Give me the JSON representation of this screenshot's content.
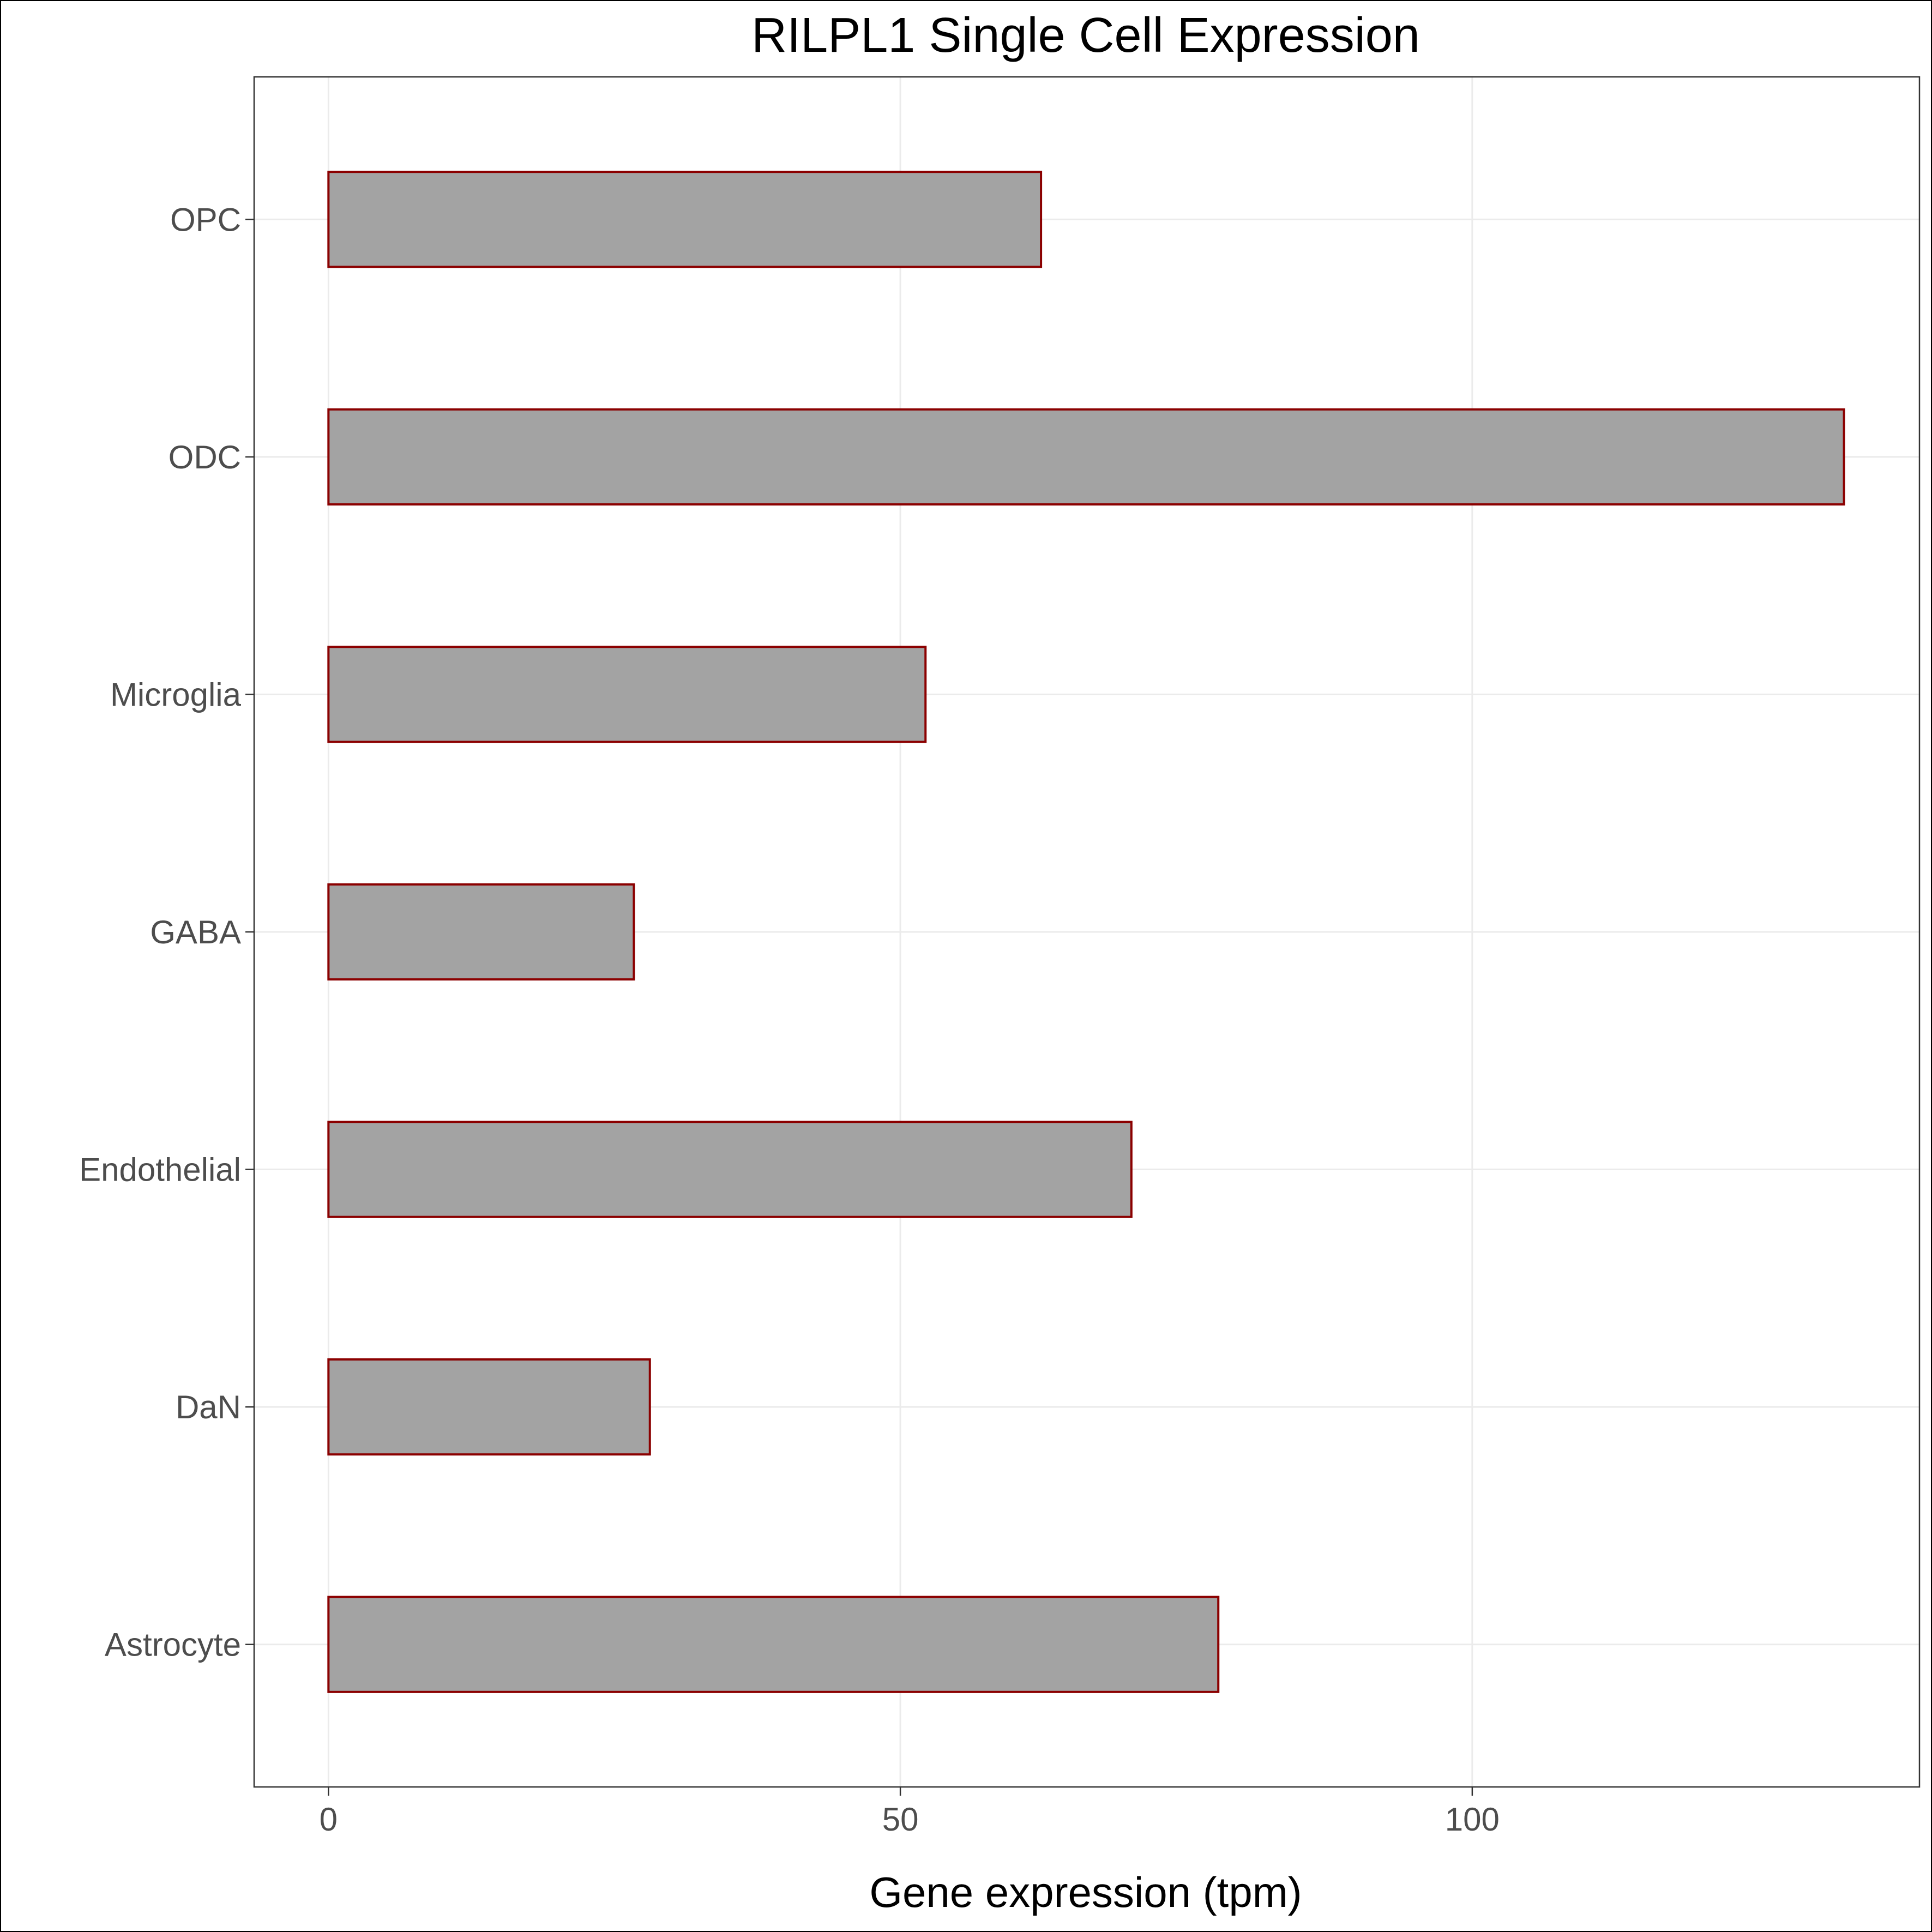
{
  "chart_data": {
    "type": "bar",
    "orientation": "horizontal",
    "title": "RILPL1 Single Cell Expression",
    "xlabel": "Gene expression (tpm)",
    "ylabel": "",
    "categories": [
      "Astrocyte",
      "DaN",
      "Endothelial",
      "GABA",
      "Microglia",
      "ODC",
      "OPC"
    ],
    "values": [
      77.8,
      28.1,
      70.2,
      26.7,
      52.2,
      132.5,
      62.3
    ],
    "xlim": [
      -6.5,
      139.1
    ],
    "xticks": [
      0,
      50,
      100
    ],
    "xtick_labels": [
      "0",
      "50",
      "100"
    ],
    "grid": true,
    "colors": {
      "bar_fill": "#a3a3a3",
      "bar_stroke": "#8b0000",
      "grid": "#ebebeb",
      "panel_border": "#333333",
      "tick_label": "#4d4d4d"
    }
  }
}
